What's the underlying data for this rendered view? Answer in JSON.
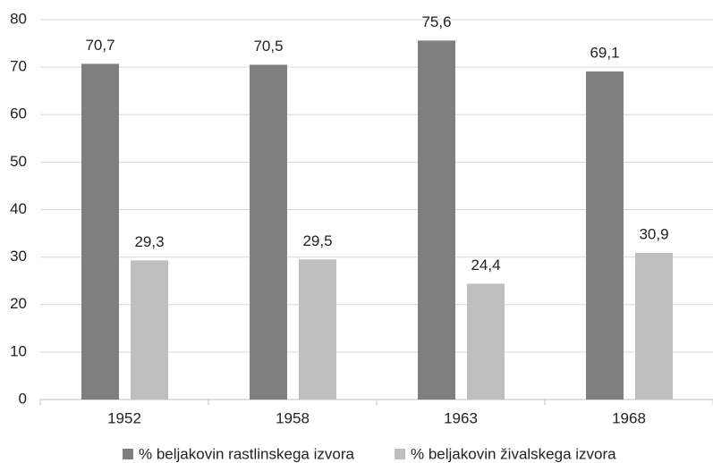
{
  "chart_data": {
    "type": "bar",
    "categories": [
      "1952",
      "1958",
      "1963",
      "1968"
    ],
    "series": [
      {
        "name": "% beljakovin rastlinskega izvora",
        "color": "#7f7f7f",
        "values": [
          70.7,
          70.5,
          75.6,
          69.1
        ],
        "value_labels": [
          "70,7",
          "70,5",
          "75,6",
          "69,1"
        ]
      },
      {
        "name": "% beljakovin živalskega izvora",
        "color": "#bfbfbf",
        "values": [
          29.3,
          29.5,
          24.4,
          30.9
        ],
        "value_labels": [
          "29,3",
          "29,5",
          "24,4",
          "30,9"
        ]
      }
    ],
    "ylim": [
      0,
      80
    ],
    "yticks": [
      0,
      10,
      20,
      30,
      40,
      50,
      60,
      70,
      80
    ],
    "grid": true,
    "legend": "bottom"
  }
}
